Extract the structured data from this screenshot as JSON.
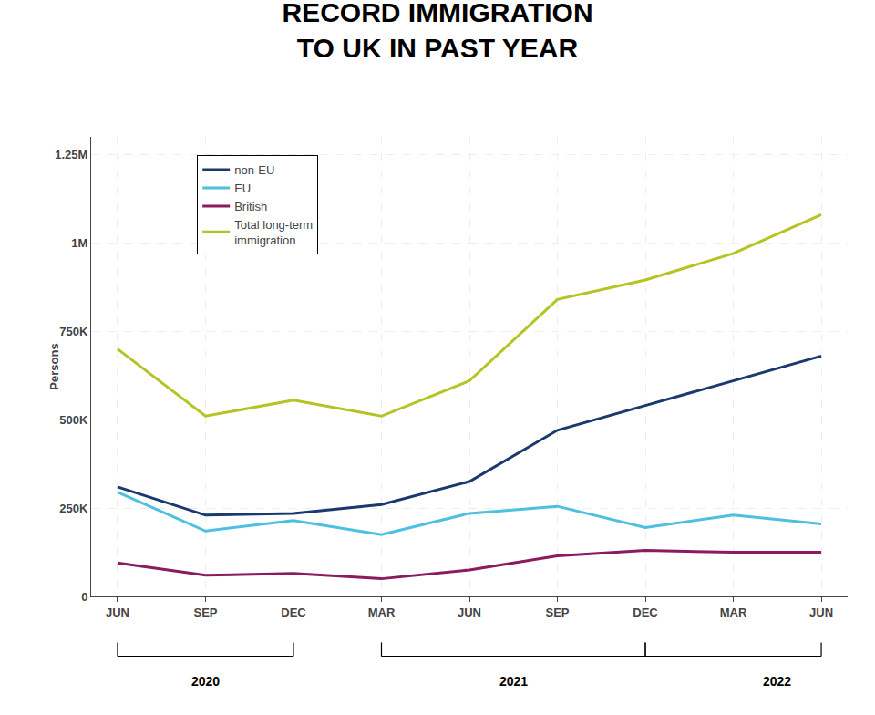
{
  "chart_data": {
    "type": "line",
    "title": "RECORD IMMIGRATION\nTO UK IN PAST YEAR",
    "ylabel": "Persons",
    "categories": [
      "JUN",
      "SEP",
      "DEC",
      "MAR",
      "JUN",
      "SEP",
      "DEC",
      "MAR",
      "JUN"
    ],
    "series": [
      {
        "name": "Total long-term\nimmigration",
        "color": "#b5c425",
        "values": [
          700000,
          510000,
          555000,
          510000,
          610000,
          840000,
          895000,
          970000,
          1080000
        ]
      },
      {
        "name": "non-EU",
        "color": "#1a3a6e",
        "values": [
          310000,
          230000,
          235000,
          260000,
          325000,
          470000,
          540000,
          610000,
          680000
        ]
      },
      {
        "name": "EU",
        "color": "#4dc0e0",
        "values": [
          295000,
          185000,
          215000,
          175000,
          235000,
          255000,
          195000,
          230000,
          205000
        ]
      },
      {
        "name": "British",
        "color": "#8b1a5e",
        "values": [
          95000,
          60000,
          65000,
          50000,
          75000,
          115000,
          130000,
          125000,
          125000
        ]
      }
    ],
    "ylim": [
      0,
      1300000
    ],
    "yticks": [
      0,
      {
        "value": 250000,
        "label": "250K"
      },
      {
        "value": 500000,
        "label": "500K"
      },
      {
        "value": 750000,
        "label": "750K"
      },
      {
        "value": 1000000,
        "label": "1M"
      },
      {
        "value": 1250000,
        "label": "1.25M"
      }
    ],
    "grid": true,
    "legend": "upper left",
    "annotations": [
      {
        "text": "2020",
        "x": 1,
        "span": [
          0,
          2
        ]
      },
      {
        "text": "2021",
        "x": 4.5,
        "span": [
          3,
          6
        ]
      },
      {
        "text": "2022",
        "x": 7.5,
        "span": [
          6,
          8
        ]
      }
    ]
  }
}
